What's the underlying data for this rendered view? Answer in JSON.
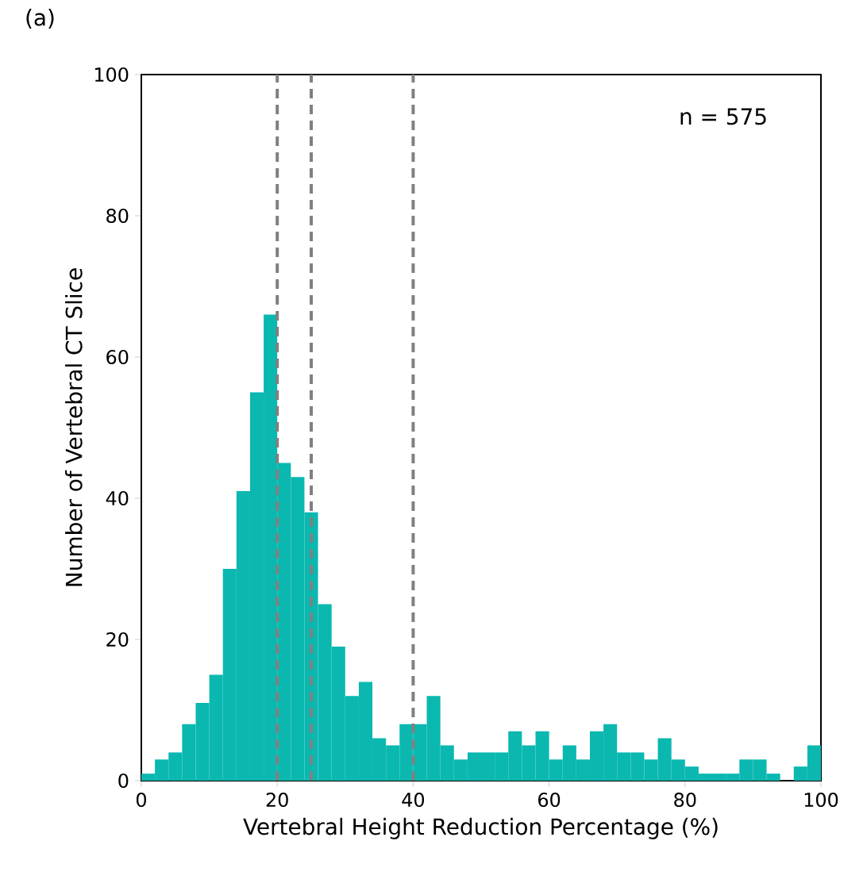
{
  "chart_data": {
    "type": "histogram",
    "title": "(a)",
    "xlabel": "Vertebral Height Reduction Percentage (%)",
    "ylabel": "Number of Vertebral CT Slice",
    "bins": [
      0,
      2,
      4,
      6,
      8,
      10,
      12,
      14,
      16,
      18,
      20,
      22,
      24,
      26,
      28,
      30,
      32,
      34,
      36,
      38,
      40,
      42,
      44,
      46,
      48,
      50,
      52,
      54,
      56,
      58,
      60,
      62,
      64,
      66,
      68,
      70,
      72,
      74,
      76,
      78,
      80,
      82,
      84,
      86,
      88,
      90,
      92,
      94,
      96,
      98,
      100
    ],
    "values": [
      1,
      3,
      4,
      8,
      11,
      15,
      30,
      41,
      55,
      66,
      45,
      43,
      38,
      25,
      19,
      12,
      14,
      6,
      5,
      8,
      8,
      12,
      5,
      3,
      4,
      4,
      4,
      7,
      5,
      7,
      3,
      5,
      3,
      7,
      8,
      4,
      4,
      3,
      6,
      3,
      2,
      1,
      1,
      1,
      3,
      3,
      1,
      0,
      2,
      5
    ],
    "color": "#0ab8b0",
    "xlim": [
      0,
      100
    ],
    "ylim": [
      0,
      100
    ],
    "xticks": [
      0,
      20,
      40,
      60,
      80,
      100
    ],
    "yticks": [
      0,
      20,
      40,
      60,
      80,
      100
    ],
    "ref_lines": [
      {
        "axis": "x",
        "value": 20,
        "color": "#808080",
        "line_style": "dashed"
      },
      {
        "axis": "x",
        "value": 25,
        "color": "#808080",
        "line_style": "dashed"
      },
      {
        "axis": "x",
        "value": 40,
        "color": "#808080",
        "line_style": "dashed"
      }
    ],
    "annotations": [
      "n = 575"
    ]
  }
}
